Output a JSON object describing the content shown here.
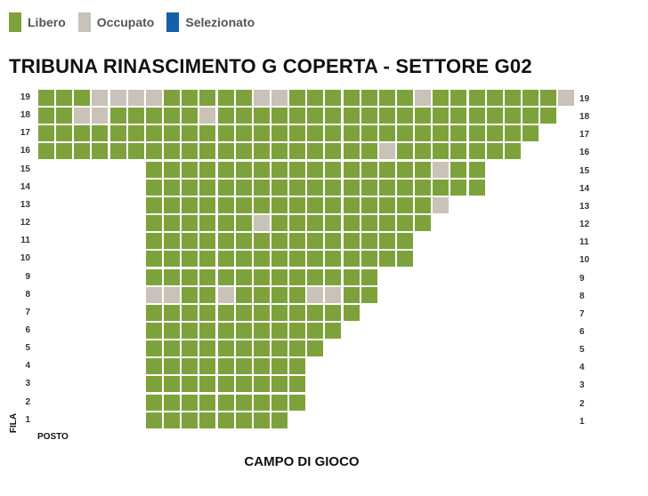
{
  "legend": [
    {
      "label": "Libero",
      "color": "#7ea23b"
    },
    {
      "label": "Occupato",
      "color": "#c8c2b8"
    },
    {
      "label": "Selezionato",
      "color": "#1560aa"
    }
  ],
  "title": "TRIBUNA RINASCIMENTO G COPERTA - SETTORE G02",
  "axis": {
    "fila": "FILA",
    "posto": "POSTO"
  },
  "field_label": "CAMPO DI GIOCO",
  "seat_colors": {
    "free": "#7ea23b",
    "occupied": "#c8c2b8",
    "selected": "#1560aa"
  },
  "rows": [
    {
      "label": "19",
      "first_seat": 1,
      "seats": 30,
      "occupied": [
        4,
        5,
        6,
        7,
        13,
        14,
        22,
        30
      ]
    },
    {
      "label": "18",
      "first_seat": 1,
      "seats": 29,
      "occupied": [
        3,
        4,
        10
      ]
    },
    {
      "label": "17",
      "first_seat": 1,
      "seats": 28,
      "occupied": []
    },
    {
      "label": "16",
      "first_seat": 1,
      "seats": 27,
      "occupied": [
        20
      ]
    },
    {
      "label": "15",
      "first_seat": 7,
      "seats": 19,
      "occupied": [
        23
      ]
    },
    {
      "label": "14",
      "first_seat": 7,
      "seats": 19,
      "occupied": []
    },
    {
      "label": "13",
      "first_seat": 7,
      "seats": 17,
      "occupied": [
        23
      ]
    },
    {
      "label": "12",
      "first_seat": 7,
      "seats": 16,
      "occupied": [
        13
      ]
    },
    {
      "label": "11",
      "first_seat": 7,
      "seats": 15,
      "occupied": []
    },
    {
      "label": "10",
      "first_seat": 7,
      "seats": 15,
      "occupied": []
    },
    {
      "label": "9",
      "first_seat": 7,
      "seats": 13,
      "occupied": []
    },
    {
      "label": "8",
      "first_seat": 7,
      "seats": 13,
      "occupied": [
        7,
        8,
        11,
        16,
        17
      ]
    },
    {
      "label": "7",
      "first_seat": 7,
      "seats": 12,
      "occupied": []
    },
    {
      "label": "6",
      "first_seat": 7,
      "seats": 11,
      "occupied": []
    },
    {
      "label": "5",
      "first_seat": 7,
      "seats": 10,
      "occupied": []
    },
    {
      "label": "4",
      "first_seat": 7,
      "seats": 9,
      "occupied": []
    },
    {
      "label": "3",
      "first_seat": 7,
      "seats": 9,
      "occupied": []
    },
    {
      "label": "2",
      "first_seat": 7,
      "seats": 9,
      "occupied": []
    },
    {
      "label": "1",
      "first_seat": 7,
      "seats": 8,
      "occupied": []
    }
  ]
}
